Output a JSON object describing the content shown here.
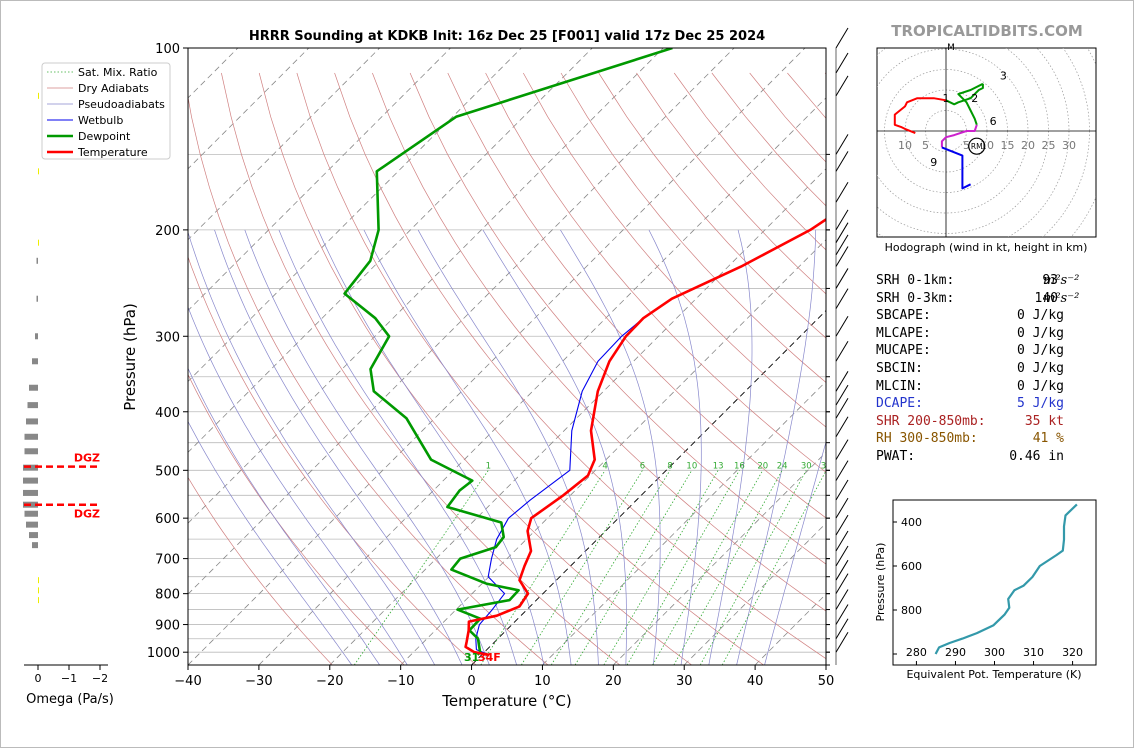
{
  "page": {
    "title": "HRRR Sounding at KDKB Init: 16z Dec 25 [F001] valid 17z Dec 25 2024",
    "watermark": "TROPICALTIDBITS.COM"
  },
  "colors": {
    "temperature": "#ff0000",
    "dewpoint": "#009900",
    "wetbulb": "#0000ee",
    "dry_adiabat": "#d08080",
    "pseudoadiabat": "#8888cc",
    "mixing_ratio": "#33aa33",
    "isotherm": "#888888",
    "dcape": "#2233cc",
    "shr": "#aa2222",
    "rh": "#885500",
    "hodo_0_1": "#ff0000",
    "hodo_1_3": "#009900",
    "hodo_3_6": "#009900",
    "hodo_6_9": "#cc22cc",
    "hodo_9_12": "#0000ee",
    "theta_e": "#3399aa"
  },
  "chart_data": [
    {
      "type": "line",
      "name": "skew-t",
      "xlabel": "Temperature (°C)",
      "ylabel": "Pressure (hPa)",
      "xlim": [
        -40,
        50
      ],
      "ylim": [
        1050,
        100
      ],
      "y_scale": "log",
      "x_ticks": [
        "−40",
        "−30",
        "−20",
        "−10",
        "0",
        "10",
        "20",
        "30",
        "40",
        "50"
      ],
      "y_ticks": [
        "100",
        "200",
        "300",
        "400",
        "500",
        "600",
        "700",
        "800",
        "900",
        "1000"
      ],
      "legend_position": "top-left",
      "legend": [
        "Sat. Mix. Ratio",
        "Dry Adiabats",
        "Pseudoadiabats",
        "Wetbulb",
        "Dewpoint",
        "Temperature"
      ],
      "mixing_ratio_labels": [
        "1",
        "4",
        "6",
        "8",
        "10",
        "13",
        "16",
        "20",
        "24",
        "30",
        "36"
      ],
      "surface_labels": {
        "dewpoint": "31",
        "temperature": "34F"
      },
      "series": [
        {
          "name": "Temperature",
          "points": [
            [
              -6.6,
              100
            ],
            [
              -8.4,
              150
            ],
            [
              -11.6,
              180
            ],
            [
              -13.6,
              200
            ],
            [
              -18.2,
              230
            ],
            [
              -23.4,
              260
            ],
            [
              -24.7,
              280
            ],
            [
              -24.6,
              300
            ],
            [
              -23.4,
              330
            ],
            [
              -20.8,
              370
            ],
            [
              -16.2,
              430
            ],
            [
              -11.6,
              480
            ],
            [
              -10.3,
              510
            ],
            [
              -11.0,
              550
            ],
            [
              -12.3,
              600
            ],
            [
              -11.0,
              630
            ],
            [
              -7.7,
              680
            ],
            [
              -6.5,
              720
            ],
            [
              -5.2,
              760
            ],
            [
              -2.1,
              800
            ],
            [
              -1.5,
              840
            ],
            [
              -3.4,
              870
            ],
            [
              -6.5,
              890
            ],
            [
              -5.3,
              920
            ],
            [
              -4.0,
              960
            ],
            [
              -3.4,
              980
            ],
            [
              -1.4,
              1000
            ],
            [
              1.0,
              1010
            ]
          ]
        },
        {
          "name": "Dewpoint",
          "points": [
            [
              -58.7,
              100
            ],
            [
              -79.5,
              130
            ],
            [
              -83.0,
              160
            ],
            [
              -74.5,
              200
            ],
            [
              -71.3,
              225
            ],
            [
              -70.3,
              255
            ],
            [
              -62.5,
              280
            ],
            [
              -58.0,
              300
            ],
            [
              -56.0,
              340
            ],
            [
              -52.4,
              370
            ],
            [
              -44.0,
              410
            ],
            [
              -34.7,
              480
            ],
            [
              -25.9,
              520
            ],
            [
              -26.3,
              540
            ],
            [
              -25.7,
              575
            ],
            [
              -15.9,
              610
            ],
            [
              -13.5,
              645
            ],
            [
              -13.2,
              670
            ],
            [
              -16.6,
              700
            ],
            [
              -16.3,
              730
            ],
            [
              -9.4,
              770
            ],
            [
              -3.9,
              790
            ],
            [
              -3.8,
              820
            ],
            [
              -9.8,
              850
            ],
            [
              -5.3,
              880
            ],
            [
              -5.2,
              920
            ],
            [
              -2.8,
              950
            ],
            [
              -0.6,
              1000
            ],
            [
              -0.6,
              1010
            ]
          ]
        },
        {
          "name": "Wetbulb",
          "points": [
            [
              -6.6,
              100
            ],
            [
              -8.4,
              150
            ],
            [
              -11.6,
              180
            ],
            [
              -13.6,
              200
            ],
            [
              -18.2,
              230
            ],
            [
              -23.4,
              260
            ],
            [
              -24.7,
              280
            ],
            [
              -25.2,
              300
            ],
            [
              -25.0,
              330
            ],
            [
              -23.0,
              370
            ],
            [
              -18.9,
              430
            ],
            [
              -13.6,
              500
            ],
            [
              -15.0,
              560
            ],
            [
              -15.5,
              600
            ],
            [
              -14.2,
              650
            ],
            [
              -12.2,
              700
            ],
            [
              -10.1,
              750
            ],
            [
              -5.4,
              800
            ],
            [
              -4.9,
              850
            ],
            [
              -4.6,
              900
            ],
            [
              -3.1,
              950
            ],
            [
              -1.5,
              990
            ],
            [
              1.0,
              1010
            ]
          ]
        }
      ]
    },
    {
      "type": "scatter",
      "name": "hodograph",
      "caption": "Hodograph (wind in kt, height in km)",
      "ring_labels": [
        "10",
        "5",
        "5",
        "10",
        "15",
        "20",
        "25",
        "30"
      ],
      "center_label": "M",
      "storm_motion_label": "RM",
      "height_labels": [
        "1",
        "2",
        "3",
        "6",
        "9"
      ],
      "segments": [
        {
          "name": "0-1 km",
          "points": [
            [
              -7.5,
              -0.5
            ],
            [
              -10,
              0.5
            ],
            [
              -11,
              1
            ],
            [
              -12.5,
              1.5
            ],
            [
              -12.5,
              2.5
            ],
            [
              -12.5,
              4
            ],
            [
              -10,
              6
            ],
            [
              -9.5,
              7
            ],
            [
              -7,
              8
            ],
            [
              -3,
              8
            ],
            [
              0,
              7.5
            ]
          ]
        },
        {
          "name": "1-3 km",
          "points": [
            [
              0,
              7.5
            ],
            [
              2,
              6.5
            ],
            [
              3,
              7
            ],
            [
              6,
              8
            ],
            [
              7,
              9
            ],
            [
              8,
              10
            ],
            [
              9,
              10.5
            ],
            [
              9,
              11.5
            ]
          ]
        },
        {
          "name": "3-6 km",
          "points": [
            [
              9,
              11.5
            ],
            [
              6,
              10
            ],
            [
              3,
              9
            ],
            [
              4,
              8
            ],
            [
              5,
              7
            ],
            [
              6,
              5
            ],
            [
              7,
              3
            ],
            [
              7.5,
              1.5
            ]
          ]
        },
        {
          "name": "6-9 km",
          "points": [
            [
              7.5,
              1.5
            ],
            [
              7,
              0
            ],
            [
              5,
              0
            ],
            [
              2,
              -1
            ],
            [
              0,
              -1.5
            ],
            [
              -1,
              -2.5
            ],
            [
              -1,
              -4
            ]
          ]
        },
        {
          "name": "9-12 km",
          "points": [
            [
              -1,
              -4
            ],
            [
              4,
              -6
            ],
            [
              4,
              -14
            ],
            [
              6,
              -13
            ]
          ]
        }
      ]
    },
    {
      "type": "line",
      "name": "theta-e",
      "xlabel": "Equivalent Pot. Temperature (K)",
      "ylabel": "Pressure (hPa)",
      "xlim": [
        274,
        326
      ],
      "ylim": [
        1050,
        300
      ],
      "x_ticks": [
        "280",
        "290",
        "300",
        "310",
        "320"
      ],
      "y_ticks": [
        "400",
        "600",
        "800"
      ],
      "points": [
        [
          284.9,
          1000
        ],
        [
          285.8,
          970
        ],
        [
          288.5,
          950
        ],
        [
          291.8,
          930
        ],
        [
          295.5,
          905
        ],
        [
          299.7,
          870
        ],
        [
          302.6,
          820
        ],
        [
          303.8,
          790
        ],
        [
          303.5,
          750
        ],
        [
          305.1,
          710
        ],
        [
          307.4,
          690
        ],
        [
          309.7,
          650
        ],
        [
          311.6,
          600
        ],
        [
          315.9,
          550
        ],
        [
          317.5,
          530
        ],
        [
          317.8,
          480
        ],
        [
          317.8,
          420
        ],
        [
          318.2,
          370
        ],
        [
          321.1,
          320
        ]
      ]
    },
    {
      "type": "bar",
      "name": "omega",
      "xlabel": "Omega (Pa/s)",
      "x_ticks": [
        "0",
        "−1",
        "−2"
      ],
      "annotations": [
        "DGZ",
        "DGZ"
      ],
      "points": [
        [
          0.05,
          225
        ],
        [
          0.05,
          260
        ],
        [
          0.1,
          300
        ],
        [
          0.2,
          330
        ],
        [
          0.3,
          365
        ],
        [
          0.35,
          390
        ],
        [
          0.4,
          415
        ],
        [
          0.45,
          440
        ],
        [
          0.45,
          465
        ],
        [
          0.5,
          495
        ],
        [
          0.5,
          520
        ],
        [
          0.5,
          545
        ],
        [
          0.5,
          570
        ],
        [
          0.45,
          590
        ],
        [
          0.4,
          615
        ],
        [
          0.3,
          640
        ],
        [
          0.2,
          665
        ]
      ]
    }
  ],
  "stats": [
    {
      "label": "SRH 0-1km:",
      "value": "93",
      "unit": "m²s⁻²",
      "kind": "normal"
    },
    {
      "label": "SRH 0-3km:",
      "value": "140",
      "unit": "m²s⁻²",
      "kind": "normal"
    },
    {
      "label": "SBCAPE:",
      "value": "0 J/kg",
      "unit": "",
      "kind": "normal"
    },
    {
      "label": "MLCAPE:",
      "value": "0 J/kg",
      "unit": "",
      "kind": "normal"
    },
    {
      "label": "MUCAPE:",
      "value": "0 J/kg",
      "unit": "",
      "kind": "normal"
    },
    {
      "label": "SBCIN:",
      "value": "0 J/kg",
      "unit": "",
      "kind": "normal"
    },
    {
      "label": "MLCIN:",
      "value": "0 J/kg",
      "unit": "",
      "kind": "normal"
    },
    {
      "label": "DCAPE:",
      "value": "5 J/kg",
      "unit": "",
      "kind": "dcape"
    },
    {
      "label": "SHR 200-850mb:",
      "value": "35 kt",
      "unit": "",
      "kind": "shr"
    },
    {
      "label": "RH 300-850mb:",
      "value": "41 %",
      "unit": "",
      "kind": "rh"
    },
    {
      "label": "PWAT:",
      "value": "0.46 in",
      "unit": "",
      "kind": "normal"
    }
  ]
}
